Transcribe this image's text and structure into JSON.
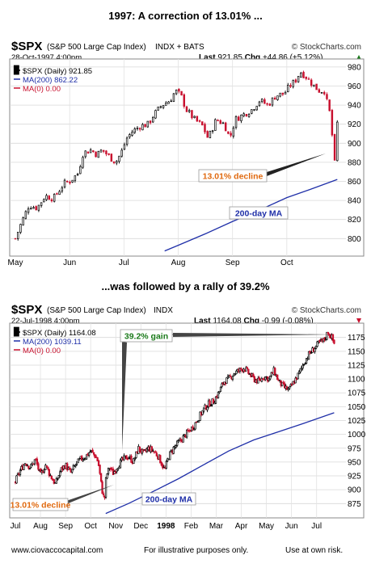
{
  "caption_top": "1997:  A correction of 13.01% ...",
  "caption_middle": "...was followed by a rally of 39.2%",
  "footer": {
    "site": "www.ciovaccocapital.com",
    "illustrative": "For illustrative purposes only.",
    "risk": "Use at own risk."
  },
  "colors": {
    "up": "#000000",
    "down": "#c8102e",
    "ma200": "#1f2fa8",
    "annotation_decline": "#e06a10",
    "annotation_gain": "#1a7a1a",
    "stockcharts_bg": "#ffffff"
  },
  "chart_data": [
    {
      "type": "candlestick",
      "symbol": "$SPX",
      "name": "(S&P 500 Large Cap Index)",
      "exchange": "INDX + BATS",
      "watermark": "© StockCharts.com",
      "date": "28-Oct-1997 4:00pm",
      "last_label": "Last",
      "last": "921.85",
      "chg_label": "Chg",
      "chg": "+44.86 (+5.12%)",
      "chg_direction": "up",
      "legend": [
        "$SPX (Daily) 921.85",
        "MA(200) 862.22",
        "MA(0) 0.00"
      ],
      "ylim": [
        785,
        985
      ],
      "yticks": [
        800,
        820,
        840,
        860,
        880,
        900,
        920,
        940,
        960,
        980
      ],
      "xlabels": [
        "May",
        "Jun",
        "Jul",
        "Aug",
        "Sep",
        "Oct"
      ],
      "xlabel_positions_month": [
        0,
        1,
        2,
        3,
        4,
        5
      ],
      "x_range_months": [
        0,
        6.0
      ],
      "price_path": [
        [
          0,
          800
        ],
        [
          0.1,
          815
        ],
        [
          0.25,
          835
        ],
        [
          0.4,
          832
        ],
        [
          0.55,
          845
        ],
        [
          0.7,
          842
        ],
        [
          0.8,
          850
        ],
        [
          0.9,
          858
        ],
        [
          1.0,
          860
        ],
        [
          1.15,
          868
        ],
        [
          1.25,
          890
        ],
        [
          1.4,
          893
        ],
        [
          1.5,
          888
        ],
        [
          1.6,
          893
        ],
        [
          1.75,
          885
        ],
        [
          1.85,
          880
        ],
        [
          1.95,
          890
        ],
        [
          2.05,
          905
        ],
        [
          2.15,
          912
        ],
        [
          2.3,
          918
        ],
        [
          2.45,
          920
        ],
        [
          2.55,
          930
        ],
        [
          2.7,
          940
        ],
        [
          2.85,
          945
        ],
        [
          2.95,
          955
        ],
        [
          3.05,
          950
        ],
        [
          3.15,
          935
        ],
        [
          3.3,
          925
        ],
        [
          3.45,
          918
        ],
        [
          3.55,
          905
        ],
        [
          3.7,
          925
        ],
        [
          3.85,
          920
        ],
        [
          3.95,
          905
        ],
        [
          4.05,
          925
        ],
        [
          4.2,
          930
        ],
        [
          4.35,
          935
        ],
        [
          4.5,
          945
        ],
        [
          4.65,
          940
        ],
        [
          4.8,
          950
        ],
        [
          4.95,
          952
        ],
        [
          5.05,
          960
        ],
        [
          5.15,
          965
        ],
        [
          5.25,
          975
        ],
        [
          5.35,
          970
        ],
        [
          5.5,
          960
        ],
        [
          5.6,
          955
        ],
        [
          5.7,
          955
        ],
        [
          5.75,
          940
        ],
        [
          5.8,
          930
        ],
        [
          5.84,
          905
        ],
        [
          5.88,
          877
        ],
        [
          5.93,
          921
        ]
      ],
      "ma200_path": [
        [
          2.75,
          787
        ],
        [
          3.0,
          793
        ],
        [
          3.5,
          805
        ],
        [
          4.0,
          818
        ],
        [
          4.5,
          830
        ],
        [
          5.0,
          843
        ],
        [
          5.5,
          853
        ],
        [
          5.93,
          862
        ]
      ],
      "annotations": [
        {
          "text": "13.01% decline",
          "color": "orange"
        },
        {
          "text": "200-day MA",
          "color": "blue"
        }
      ]
    },
    {
      "type": "candlestick",
      "symbol": "$SPX",
      "name": "(S&P 500 Large Cap Index)",
      "exchange": "INDX",
      "watermark": "© StockCharts.com",
      "date": "22-Jul-1998 4:00pm",
      "last_label": "Last",
      "last": "1164.08",
      "chg_label": "Chg",
      "chg": "-0.99 (-0.08%)",
      "chg_direction": "down",
      "legend": [
        "$SPX (Daily) 1164.08",
        "MA(200) 1039.11",
        "MA(0) 0.00"
      ],
      "ylim": [
        855,
        1195
      ],
      "yticks": [
        875,
        900,
        925,
        950,
        975,
        1000,
        1025,
        1050,
        1075,
        1100,
        1125,
        1150,
        1175
      ],
      "xlabels": [
        "Jul",
        "Aug",
        "Sep",
        "Oct",
        "Nov",
        "Dec",
        "1998",
        "Feb",
        "Mar",
        "Apr",
        "May",
        "Jun",
        "Jul"
      ],
      "x_range_months": [
        0,
        12.75
      ],
      "price_path": [
        [
          0,
          915
        ],
        [
          0.2,
          935
        ],
        [
          0.4,
          950
        ],
        [
          0.6,
          940
        ],
        [
          0.8,
          955
        ],
        [
          1.0,
          925
        ],
        [
          1.2,
          945
        ],
        [
          1.4,
          925
        ],
        [
          1.6,
          910
        ],
        [
          1.8,
          935
        ],
        [
          2.0,
          945
        ],
        [
          2.2,
          930
        ],
        [
          2.4,
          945
        ],
        [
          2.6,
          955
        ],
        [
          2.8,
          960
        ],
        [
          3.0,
          970
        ],
        [
          3.2,
          960
        ],
        [
          3.3,
          950
        ],
        [
          3.45,
          900
        ],
        [
          3.55,
          880
        ],
        [
          3.62,
          925
        ],
        [
          3.75,
          940
        ],
        [
          3.9,
          930
        ],
        [
          4.1,
          945
        ],
        [
          4.3,
          955
        ],
        [
          4.5,
          960
        ],
        [
          4.7,
          950
        ],
        [
          4.9,
          975
        ],
        [
          5.1,
          965
        ],
        [
          5.3,
          975
        ],
        [
          5.5,
          970
        ],
        [
          5.7,
          960
        ],
        [
          5.85,
          945
        ],
        [
          5.95,
          935
        ],
        [
          6.1,
          960
        ],
        [
          6.3,
          975
        ],
        [
          6.5,
          985
        ],
        [
          6.7,
          995
        ],
        [
          6.9,
          1005
        ],
        [
          7.1,
          1015
        ],
        [
          7.3,
          1030
        ],
        [
          7.5,
          1045
        ],
        [
          7.7,
          1055
        ],
        [
          7.9,
          1060
        ],
        [
          8.1,
          1075
        ],
        [
          8.3,
          1095
        ],
        [
          8.5,
          1100
        ],
        [
          8.7,
          1110
        ],
        [
          8.9,
          1115
        ],
        [
          9.1,
          1120
        ],
        [
          9.3,
          1110
        ],
        [
          9.5,
          1100
        ],
        [
          9.7,
          1095
        ],
        [
          9.9,
          1105
        ],
        [
          10.1,
          1100
        ],
        [
          10.3,
          1115
        ],
        [
          10.5,
          1095
        ],
        [
          10.7,
          1085
        ],
        [
          10.9,
          1080
        ],
        [
          11.1,
          1095
        ],
        [
          11.3,
          1110
        ],
        [
          11.5,
          1130
        ],
        [
          11.7,
          1145
        ],
        [
          11.9,
          1155
        ],
        [
          12.1,
          1165
        ],
        [
          12.3,
          1170
        ],
        [
          12.45,
          1185
        ],
        [
          12.6,
          1175
        ],
        [
          12.7,
          1164
        ]
      ],
      "ma200_path": [
        [
          3.6,
          857
        ],
        [
          4.5,
          875
        ],
        [
          5.5,
          897
        ],
        [
          6.5,
          920
        ],
        [
          7.5,
          945
        ],
        [
          8.5,
          970
        ],
        [
          9.5,
          990
        ],
        [
          10.5,
          1005
        ],
        [
          11.5,
          1020
        ],
        [
          12.7,
          1039
        ]
      ],
      "annotations": [
        {
          "text": "39.2% gain",
          "color": "green"
        },
        {
          "text": "13.01% decline",
          "color": "orange"
        },
        {
          "text": "200-day MA",
          "color": "blue"
        }
      ]
    }
  ]
}
